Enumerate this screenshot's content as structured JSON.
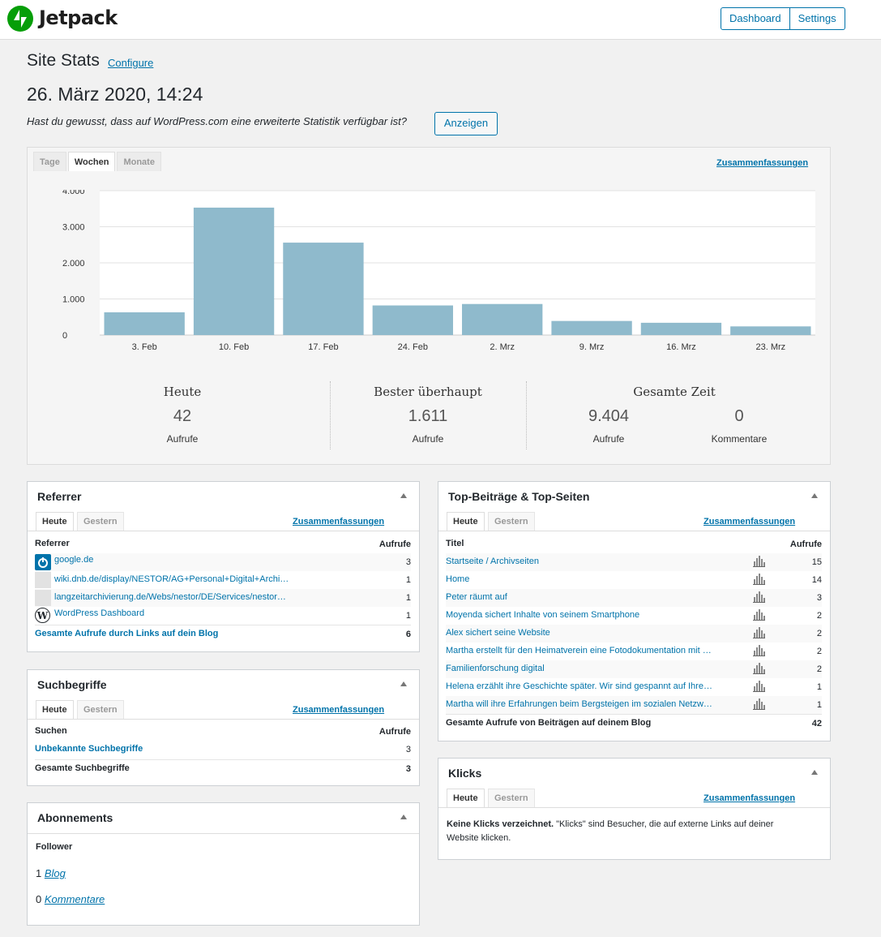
{
  "app": {
    "name": "Jetpack"
  },
  "topnav": {
    "dashboard": "Dashboard",
    "settings": "Settings"
  },
  "header": {
    "title": "Site Stats",
    "configure": "Configure",
    "date": "26. März 2020, 14:24",
    "hint": "Hast du gewusst, dass auf WordPress.com eine erweiterte Statistik verfügbar ist?",
    "show_button": "Anzeigen"
  },
  "chart_tabs": {
    "days": "Tage",
    "weeks": "Wochen",
    "months": "Monate",
    "summaries": "Zusammenfassungen"
  },
  "chart_data": {
    "type": "bar",
    "categories": [
      "3. Feb",
      "10. Feb",
      "17. Feb",
      "24. Feb",
      "2. Mrz",
      "9. Mrz",
      "16. Mrz",
      "23. Mrz"
    ],
    "values": [
      630,
      3530,
      2560,
      820,
      860,
      390,
      340,
      240
    ],
    "ylim": [
      0,
      4000
    ],
    "yticks": [
      "0",
      "1.000",
      "2.000",
      "3.000",
      "4.000"
    ],
    "grid": true,
    "color": "#8fbacc"
  },
  "summary": {
    "today": {
      "title": "Heute",
      "value": "42",
      "label": "Aufrufe"
    },
    "best": {
      "title": "Bester überhaupt",
      "value": "1.611",
      "label": "Aufrufe"
    },
    "total": {
      "title": "Gesamte Zeit",
      "views": "9.404",
      "views_label": "Aufrufe",
      "comments": "0",
      "comments_label": "Kommentare"
    }
  },
  "referrer": {
    "title": "Referrer",
    "tab_today": "Heute",
    "tab_yesterday": "Gestern",
    "summaries": "Zusammenfassungen",
    "col_name": "Referrer",
    "col_views": "Aufrufe",
    "rows": [
      {
        "label": "google.de",
        "value": "3"
      },
      {
        "label": "wiki.dnb.de/display/NESTOR/AG+Personal+Digital+Archi…",
        "value": "1"
      },
      {
        "label": "langzeitarchivierung.de/Webs/nestor/DE/Services/nestor…",
        "value": "1"
      },
      {
        "label": "WordPress Dashboard",
        "value": "1"
      }
    ],
    "total_label": "Gesamte Aufrufe durch Links auf dein Blog",
    "total_value": "6"
  },
  "search": {
    "title": "Suchbegriffe",
    "tab_today": "Heute",
    "tab_yesterday": "Gestern",
    "summaries": "Zusammenfassungen",
    "col_name": "Suchen",
    "col_views": "Aufrufe",
    "rows": [
      {
        "label": "Unbekannte Suchbegriffe",
        "value": "3"
      }
    ],
    "total_label": "Gesamte Suchbegriffe",
    "total_value": "3"
  },
  "subs": {
    "title": "Abonnements",
    "follower": "Follower",
    "blog_count": "1",
    "blog_label": "Blog",
    "comments_count": "0",
    "comments_label": "Kommentare"
  },
  "top": {
    "title": "Top-Beiträge & Top-Seiten",
    "tab_today": "Heute",
    "tab_yesterday": "Gestern",
    "summaries": "Zusammenfassungen",
    "col_name": "Titel",
    "col_views": "Aufrufe",
    "rows": [
      {
        "label": "Startseite / Archivseiten",
        "value": "15"
      },
      {
        "label": "Home",
        "value": "14"
      },
      {
        "label": "Peter räumt auf",
        "value": "3"
      },
      {
        "label": "Moyenda sichert Inhalte von seinem Smartphone",
        "value": "2"
      },
      {
        "label": "Alex sichert seine Website",
        "value": "2"
      },
      {
        "label": "Martha erstellt für den Heimatverein eine Fotodokumentation mit …",
        "value": "2"
      },
      {
        "label": "Familienforschung digital",
        "value": "2"
      },
      {
        "label": "Helena erzählt ihre Geschichte später. Wir sind gespannt auf Ihre…",
        "value": "1"
      },
      {
        "label": "Martha will ihre Erfahrungen beim Bergsteigen im sozialen Netzw…",
        "value": "1"
      }
    ],
    "total_label": "Gesamte Aufrufe von Beiträgen auf deinem Blog",
    "total_value": "42"
  },
  "clicks": {
    "title": "Klicks",
    "tab_today": "Heute",
    "tab_yesterday": "Gestern",
    "summaries": "Zusammenfassungen",
    "empty_bold": "Keine Klicks verzeichnet.",
    "empty_text": " \"Klicks\" sind Besucher, die auf externe Links auf deiner",
    "empty_text2": "Website klicken."
  }
}
